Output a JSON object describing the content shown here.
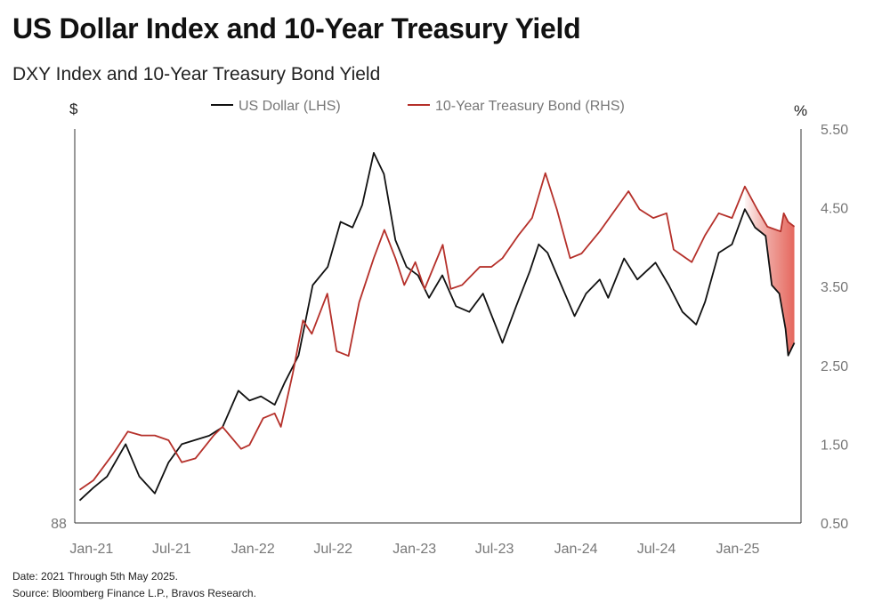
{
  "title": "US Dollar Index and 10-Year Treasury Yield",
  "footer": {
    "date_note": "Date: 2021 Through 5th May 2025.",
    "source": "Source: Bloomberg Finance L.P., Bravos Research."
  },
  "chart_data": {
    "type": "line",
    "title": "DXY Index and 10-Year Treasury Bond Yield",
    "left_axis": {
      "unit_label": "$",
      "tick_labels": [
        "88"
      ],
      "ylim": [
        88,
        116
      ]
    },
    "right_axis": {
      "unit_label": "%",
      "tick_labels": [
        "5.50",
        "4.50",
        "3.50",
        "2.50",
        "1.50",
        "0.50"
      ],
      "ticks": [
        5.5,
        4.5,
        3.5,
        2.5,
        1.5,
        0.5
      ],
      "ylim": [
        0.5,
        5.5
      ]
    },
    "x_axis": {
      "tick_labels": [
        "Jan-21",
        "Jul-21",
        "Jan-22",
        "Jul-22",
        "Jan-23",
        "Jul-23",
        "Jan-24",
        "Jul-24",
        "Jan-25"
      ],
      "ticks": [
        "2021-01-01",
        "2021-07-01",
        "2022-01-01",
        "2022-07-01",
        "2023-01-01",
        "2023-07-01",
        "2024-01-01",
        "2024-07-01",
        "2025-01-01"
      ],
      "xlim": [
        "2020-11-20",
        "2025-05-20"
      ]
    },
    "grid": false,
    "legend_placement": "top-center",
    "highlight": {
      "type": "shaded-gap-with-double-arrow",
      "from": "2025-01-13",
      "to": "2025-05-05",
      "color": "#e2574c"
    },
    "series": [
      {
        "name": "US Dollar (LHS)",
        "axis": "left",
        "color": "#111111",
        "points": [
          [
            "2020-12-01",
            89.6
          ],
          [
            "2021-01-01",
            90.5
          ],
          [
            "2021-02-01",
            91.3
          ],
          [
            "2021-03-15",
            93.6
          ],
          [
            "2021-04-15",
            91.3
          ],
          [
            "2021-05-20",
            90.1
          ],
          [
            "2021-06-20",
            92.3
          ],
          [
            "2021-07-20",
            93.6
          ],
          [
            "2021-08-20",
            93.9
          ],
          [
            "2021-09-20",
            94.2
          ],
          [
            "2021-10-20",
            94.8
          ],
          [
            "2021-11-25",
            97.4
          ],
          [
            "2021-12-20",
            96.7
          ],
          [
            "2022-01-15",
            97.0
          ],
          [
            "2022-02-15",
            96.4
          ],
          [
            "2022-03-10",
            98.0
          ],
          [
            "2022-04-10",
            99.9
          ],
          [
            "2022-05-12",
            104.9
          ],
          [
            "2022-06-15",
            106.2
          ],
          [
            "2022-07-14",
            109.4
          ],
          [
            "2022-08-10",
            109.0
          ],
          [
            "2022-09-01",
            110.6
          ],
          [
            "2022-09-27",
            114.3
          ],
          [
            "2022-10-20",
            112.8
          ],
          [
            "2022-11-15",
            108.1
          ],
          [
            "2022-12-10",
            106.2
          ],
          [
            "2023-01-05",
            105.6
          ],
          [
            "2023-01-30",
            104.0
          ],
          [
            "2023-03-01",
            105.6
          ],
          [
            "2023-04-01",
            103.4
          ],
          [
            "2023-05-01",
            103.0
          ],
          [
            "2023-06-01",
            104.3
          ],
          [
            "2023-07-15",
            100.8
          ],
          [
            "2023-08-15",
            103.4
          ],
          [
            "2023-09-15",
            105.9
          ],
          [
            "2023-10-05",
            107.8
          ],
          [
            "2023-10-25",
            107.2
          ],
          [
            "2023-11-25",
            104.9
          ],
          [
            "2023-12-25",
            102.7
          ],
          [
            "2024-01-20",
            104.3
          ],
          [
            "2024-02-20",
            105.3
          ],
          [
            "2024-03-10",
            104.0
          ],
          [
            "2024-04-15",
            106.8
          ],
          [
            "2024-05-15",
            105.3
          ],
          [
            "2024-06-25",
            106.5
          ],
          [
            "2024-07-25",
            104.9
          ],
          [
            "2024-08-25",
            103.0
          ],
          [
            "2024-09-25",
            102.1
          ],
          [
            "2024-10-15",
            103.7
          ],
          [
            "2024-11-15",
            107.2
          ],
          [
            "2024-12-15",
            107.8
          ],
          [
            "2025-01-13",
            110.3
          ],
          [
            "2025-02-05",
            109.0
          ],
          [
            "2025-03-01",
            108.4
          ],
          [
            "2025-03-15",
            104.9
          ],
          [
            "2025-04-01",
            104.3
          ],
          [
            "2025-04-15",
            101.8
          ],
          [
            "2025-04-21",
            99.9
          ],
          [
            "2025-05-05",
            100.8
          ]
        ]
      },
      {
        "name": "10-Year Treasury Bond (RHS)",
        "axis": "right",
        "color": "#b5302a",
        "points": [
          [
            "2020-12-01",
            0.92
          ],
          [
            "2021-01-01",
            1.04
          ],
          [
            "2021-02-15",
            1.38
          ],
          [
            "2021-03-20",
            1.66
          ],
          [
            "2021-04-20",
            1.61
          ],
          [
            "2021-05-20",
            1.61
          ],
          [
            "2021-06-20",
            1.55
          ],
          [
            "2021-07-20",
            1.27
          ],
          [
            "2021-08-20",
            1.32
          ],
          [
            "2021-09-30",
            1.61
          ],
          [
            "2021-10-20",
            1.72
          ],
          [
            "2021-12-01",
            1.44
          ],
          [
            "2021-12-20",
            1.49
          ],
          [
            "2022-01-20",
            1.83
          ],
          [
            "2022-02-15",
            1.89
          ],
          [
            "2022-03-01",
            1.72
          ],
          [
            "2022-03-28",
            2.4
          ],
          [
            "2022-04-20",
            3.07
          ],
          [
            "2022-05-10",
            2.9
          ],
          [
            "2022-06-14",
            3.41
          ],
          [
            "2022-07-05",
            2.68
          ],
          [
            "2022-08-01",
            2.62
          ],
          [
            "2022-08-25",
            3.3
          ],
          [
            "2022-09-27",
            3.86
          ],
          [
            "2022-10-21",
            4.22
          ],
          [
            "2022-11-15",
            3.86
          ],
          [
            "2022-12-05",
            3.52
          ],
          [
            "2022-12-30",
            3.81
          ],
          [
            "2023-01-20",
            3.47
          ],
          [
            "2023-03-02",
            4.03
          ],
          [
            "2023-03-20",
            3.47
          ],
          [
            "2023-04-15",
            3.52
          ],
          [
            "2023-05-25",
            3.75
          ],
          [
            "2023-06-20",
            3.75
          ],
          [
            "2023-07-15",
            3.86
          ],
          [
            "2023-08-20",
            4.15
          ],
          [
            "2023-09-20",
            4.37
          ],
          [
            "2023-10-20",
            4.94
          ],
          [
            "2023-11-15",
            4.48
          ],
          [
            "2023-12-15",
            3.86
          ],
          [
            "2024-01-10",
            3.92
          ],
          [
            "2024-02-20",
            4.2
          ],
          [
            "2024-04-25",
            4.71
          ],
          [
            "2024-05-20",
            4.48
          ],
          [
            "2024-06-20",
            4.37
          ],
          [
            "2024-07-20",
            4.43
          ],
          [
            "2024-08-05",
            3.97
          ],
          [
            "2024-09-15",
            3.81
          ],
          [
            "2024-10-15",
            4.15
          ],
          [
            "2024-11-15",
            4.43
          ],
          [
            "2024-12-15",
            4.37
          ],
          [
            "2025-01-13",
            4.77
          ],
          [
            "2025-02-10",
            4.48
          ],
          [
            "2025-03-05",
            4.26
          ],
          [
            "2025-04-04",
            4.2
          ],
          [
            "2025-04-11",
            4.43
          ],
          [
            "2025-04-21",
            4.32
          ],
          [
            "2025-05-05",
            4.26
          ]
        ]
      }
    ]
  }
}
